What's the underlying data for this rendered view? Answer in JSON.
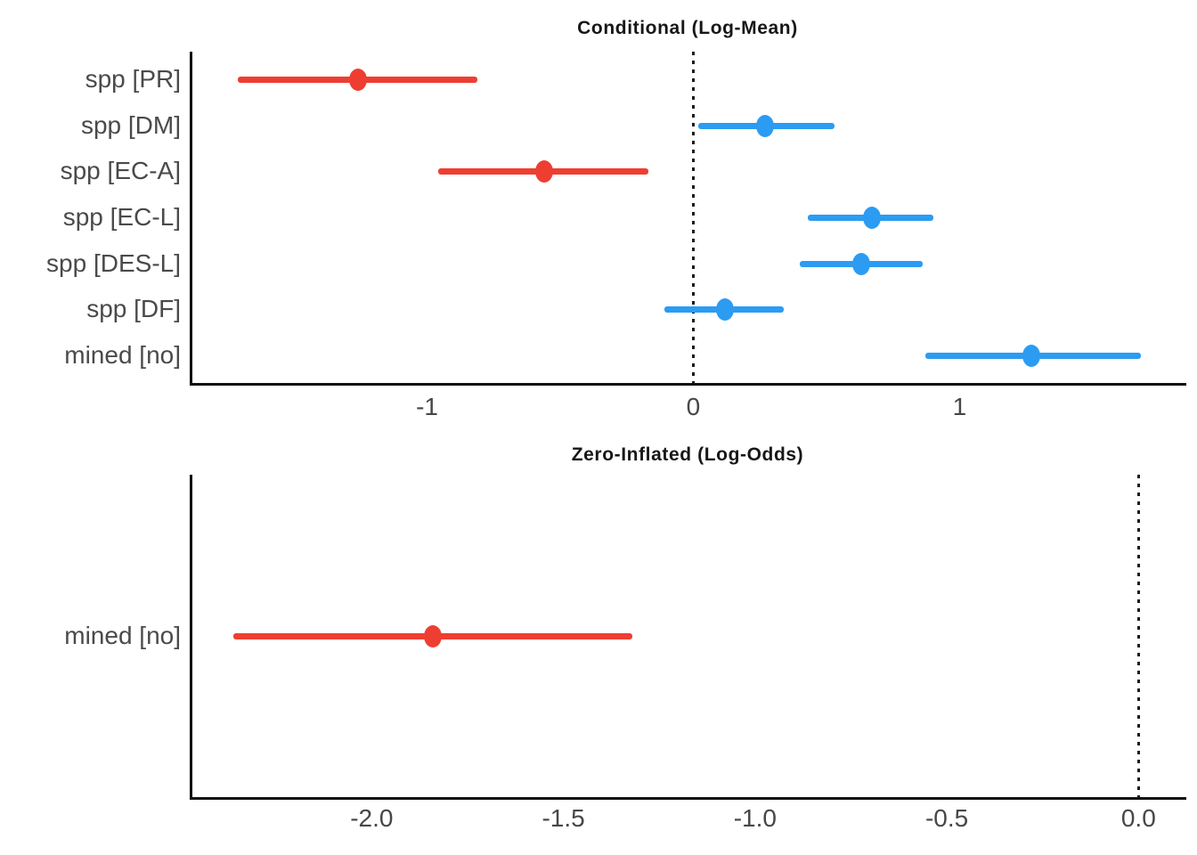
{
  "page": {
    "background": "#ffffff"
  },
  "colors": {
    "negative": "#ee3e32",
    "positive": "#2b9cf2",
    "axis": "#111111",
    "zero_line": "#1a1a1a",
    "category_label": "#4a4a4a",
    "tick_label": "#474747",
    "title": "#171717"
  },
  "chart_data": [
    {
      "type": "scatter",
      "subtype": "forest-dot-whisker",
      "title": "Conditional (Log-Mean)",
      "orientation": "horizontal",
      "categories": [
        "spp [PR]",
        "spp [DM]",
        "spp [EC-A]",
        "spp [EC-L]",
        "spp [DES-L]",
        "spp [DF]",
        "mined [no]"
      ],
      "estimates": [
        -1.26,
        0.27,
        -0.56,
        0.67,
        0.63,
        0.12,
        1.27
      ],
      "ci_low": [
        -1.71,
        0.02,
        -0.96,
        0.43,
        0.4,
        -0.11,
        0.87
      ],
      "ci_high": [
        -0.81,
        0.53,
        -0.17,
        0.9,
        0.86,
        0.34,
        1.68
      ],
      "xlim": [
        -1.885,
        1.845
      ],
      "xticks": [
        -1,
        0,
        1
      ],
      "xtick_labels": [
        "-1",
        "0",
        "1"
      ],
      "vline": 0,
      "grid": false,
      "legend": "none",
      "color_rule": "negative estimates red, positive estimates blue"
    },
    {
      "type": "scatter",
      "subtype": "forest-dot-whisker",
      "title": "Zero-Inflated (Log-Odds)",
      "orientation": "horizontal",
      "categories": [
        "mined [no]"
      ],
      "estimates": [
        -1.84
      ],
      "ci_low": [
        -2.36
      ],
      "ci_high": [
        -1.32
      ],
      "xlim": [
        -2.47,
        0.12
      ],
      "xticks": [
        -2.0,
        -1.5,
        -1.0,
        -0.5,
        0.0
      ],
      "xtick_labels": [
        "-2.0",
        "-1.5",
        "-1.0",
        "-0.5",
        "0.0"
      ],
      "vline": 0,
      "grid": false,
      "legend": "none",
      "color_rule": "negative estimates red, positive estimates blue"
    }
  ]
}
